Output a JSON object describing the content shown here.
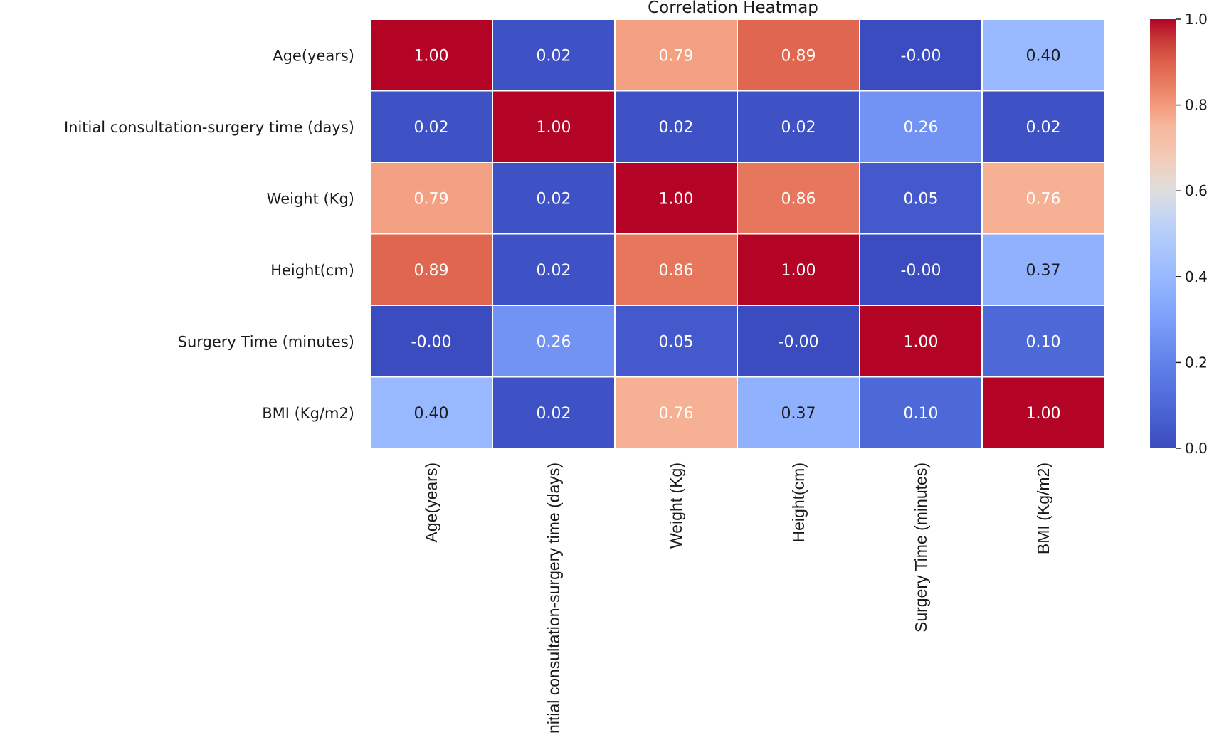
{
  "chart_data": {
    "type": "heatmap",
    "title": "Correlation Heatmap",
    "rows": [
      "Age(years)",
      "Initial consultation-surgery time (days)",
      "Weight (Kg)",
      "Height(cm)",
      "Surgery Time (minutes)",
      "BMI (Kg/m2)"
    ],
    "columns": [
      "Age(years)",
      "Initial consultation-surgery time (days)",
      "Weight (Kg)",
      "Height(cm)",
      "Surgery Time (minutes)",
      "BMI (Kg/m2)"
    ],
    "values": [
      [
        1.0,
        0.02,
        0.79,
        0.89,
        -0.0,
        0.4
      ],
      [
        0.02,
        1.0,
        0.02,
        0.02,
        0.26,
        0.02
      ],
      [
        0.79,
        0.02,
        1.0,
        0.86,
        0.05,
        0.76
      ],
      [
        0.89,
        0.02,
        0.86,
        1.0,
        -0.0,
        0.37
      ],
      [
        -0.0,
        0.26,
        0.05,
        -0.0,
        1.0,
        0.1
      ],
      [
        0.4,
        0.02,
        0.76,
        0.37,
        0.1,
        1.0
      ]
    ],
    "value_labels": [
      [
        "1.00",
        "0.02",
        "0.79",
        "0.89",
        "-0.00",
        "0.40"
      ],
      [
        "0.02",
        "1.00",
        "0.02",
        "0.02",
        "0.26",
        "0.02"
      ],
      [
        "0.79",
        "0.02",
        "1.00",
        "0.86",
        "0.05",
        "0.76"
      ],
      [
        "0.89",
        "0.02",
        "0.86",
        "1.00",
        "-0.00",
        "0.37"
      ],
      [
        "-0.00",
        "0.26",
        "0.05",
        "-0.00",
        "1.00",
        "0.10"
      ],
      [
        "0.40",
        "0.02",
        "0.76",
        "0.37",
        "0.10",
        "1.00"
      ]
    ],
    "colormap": "coolwarm",
    "colorbar": {
      "range": [
        0.0,
        1.0
      ],
      "ticks": [
        0.0,
        0.2,
        0.4,
        0.6,
        0.8,
        1.0
      ],
      "tick_labels": [
        "0.0",
        "0.2",
        "0.4",
        "0.6",
        "0.8",
        "1.0"
      ],
      "position": "right"
    },
    "xlabel": "",
    "ylabel": "",
    "colors": {
      "cell_border": "#ffffff",
      "low": "#3b4cc0",
      "mid": "#dddddd",
      "high": "#b40426"
    }
  }
}
